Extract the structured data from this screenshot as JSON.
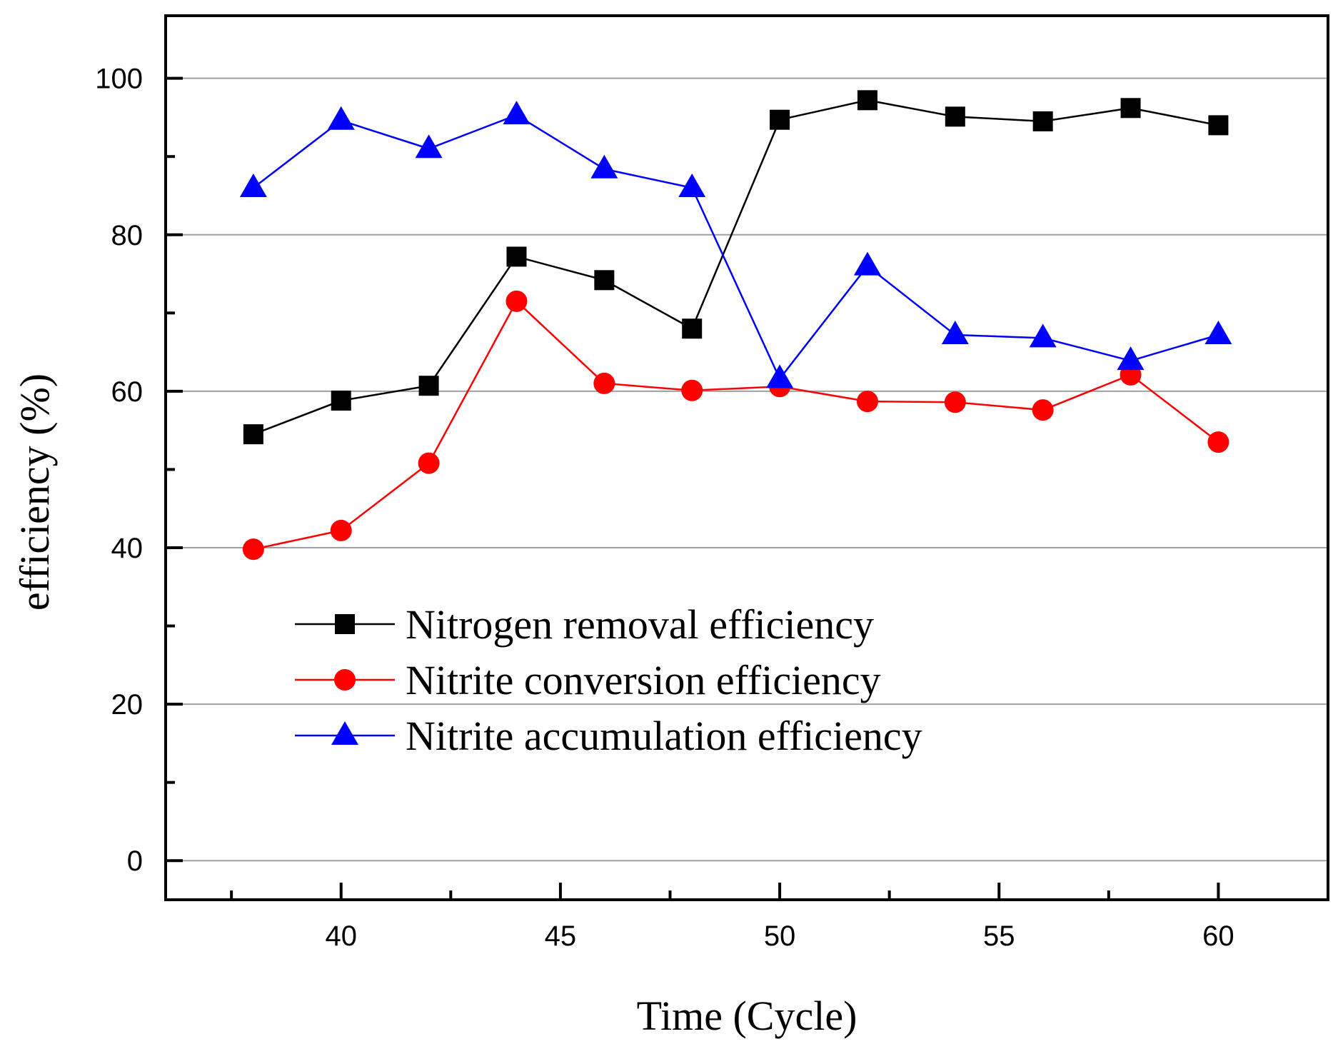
{
  "chart_data": {
    "type": "line",
    "title": "",
    "xlabel": "Time (Cycle)",
    "ylabel": "efficiency (%)",
    "xlim": [
      36,
      62.5
    ],
    "ylim": [
      -5,
      108
    ],
    "xticks": [
      40,
      45,
      50,
      55,
      60
    ],
    "xticks_minor": [
      37.5,
      42.5,
      47.5,
      52.5,
      57.5
    ],
    "yticks": [
      0,
      20,
      40,
      60,
      80,
      100
    ],
    "yticks_minor": [
      10,
      30,
      50,
      70,
      90
    ],
    "grid": "horizontal",
    "legend_position": "center-left",
    "x": [
      38,
      40,
      42,
      44,
      46,
      48,
      50,
      52,
      54,
      56,
      58,
      60
    ],
    "series": [
      {
        "name": "Nitrogen removal efficiency",
        "color": "#000000",
        "marker": "square",
        "values": [
          54.5,
          58.8,
          60.7,
          77.2,
          74.2,
          68.0,
          94.7,
          97.2,
          95.1,
          94.5,
          96.2,
          94.0
        ]
      },
      {
        "name": "Nitrite conversion efficiency",
        "color": "#ff0000",
        "marker": "circle",
        "values": [
          39.8,
          42.2,
          50.8,
          71.5,
          61.0,
          60.1,
          60.6,
          58.7,
          58.6,
          57.6,
          62.1,
          53.5
        ]
      },
      {
        "name": "Nitrite accumulation efficiency",
        "color": "#0000ff",
        "marker": "triangle",
        "values": [
          86.0,
          94.6,
          91.0,
          95.3,
          88.4,
          86.0,
          61.6,
          76.0,
          67.2,
          66.8,
          63.9,
          67.2
        ]
      }
    ]
  }
}
